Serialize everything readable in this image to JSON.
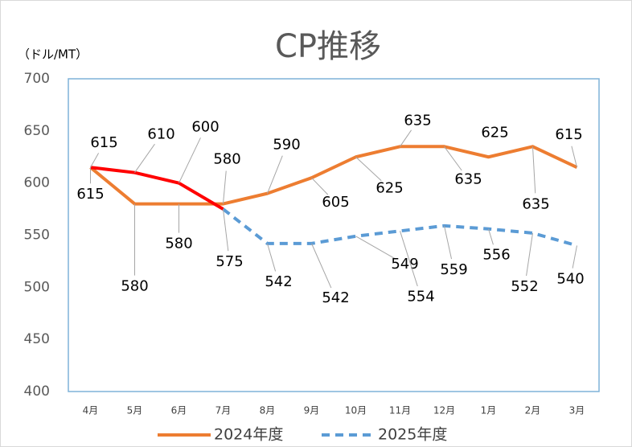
{
  "chart_data": {
    "type": "line",
    "title": "CP推移",
    "ylabel": "（ドル/MT）",
    "categories": [
      "4月",
      "5月",
      "6月",
      "7月",
      "8月",
      "9月",
      "10月",
      "11月",
      "12月",
      "1月",
      "2月",
      "3月"
    ],
    "series": [
      {
        "name": "2024年度",
        "color": "#ed7d31",
        "dashed": false,
        "values": [
          615,
          580,
          580,
          580,
          590,
          605,
          625,
          635,
          635,
          625,
          635,
          615
        ]
      },
      {
        "name": "2025年度",
        "color": "#5b9bd5",
        "dashed": true,
        "values": [
          615,
          610,
          600,
          575,
          542,
          542,
          549,
          554,
          559,
          556,
          552,
          540
        ],
        "highlight": {
          "color": "#ff0000",
          "end": 3
        }
      }
    ],
    "ylim": [
      400,
      700
    ],
    "yticks": [
      400,
      450,
      500,
      550,
      600,
      650,
      700
    ],
    "grid": false,
    "legend": "bottom"
  }
}
